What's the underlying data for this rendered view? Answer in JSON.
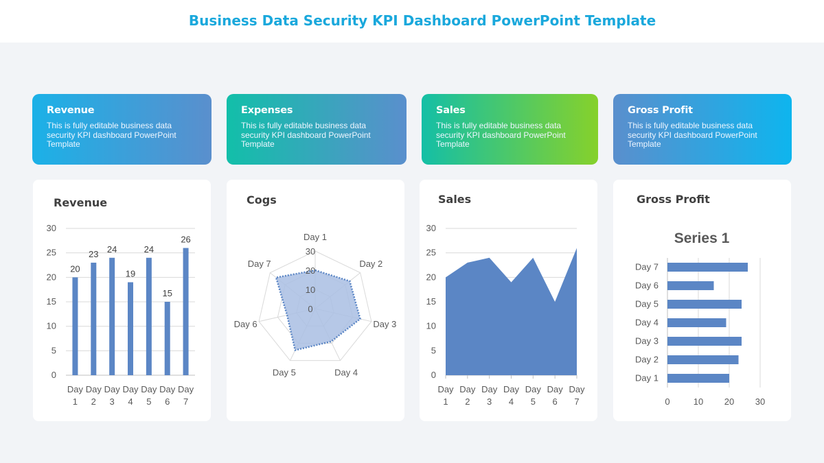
{
  "page": {
    "title": "Business Data Security KPI Dashboard PowerPoint Template"
  },
  "kpis": [
    {
      "title": "Revenue",
      "desc": "This is fully editable business data security KPI dashboard PowerPoint Template",
      "colors": [
        "#1bb1e7",
        "#5a8fcd"
      ]
    },
    {
      "title": "Expenses",
      "desc": "This is fully editable business data security KPI dashboard PowerPoint Template",
      "colors": [
        "#12bfa9",
        "#5a8fcd"
      ]
    },
    {
      "title": "Sales",
      "desc": "This is fully editable business data security KPI dashboard PowerPoint Template",
      "colors": [
        "#14bfa6",
        "#86d12b"
      ]
    },
    {
      "title": "Gross Profit",
      "desc": "This is fully editable business data security KPI dashboard PowerPoint Template",
      "colors": [
        "#5a8fcd",
        "#0eb5ee"
      ]
    }
  ],
  "panels": {
    "revenue": "Revenue",
    "cogs": "Cogs",
    "sales": "Sales",
    "gross_profit": "Gross Profit"
  },
  "colors": {
    "series": "#5b86c5",
    "radar_fill": "#a9bee3",
    "grid": "#d9d9d9",
    "axis_text": "#595959"
  },
  "chart_data": [
    {
      "type": "bar",
      "title": "Revenue",
      "categories": [
        "Day 1",
        "Day 2",
        "Day 3",
        "Day 4",
        "Day 5",
        "Day 6",
        "Day 7"
      ],
      "values": [
        20,
        23,
        24,
        19,
        24,
        15,
        26
      ],
      "ylim": [
        0,
        30
      ],
      "yticks": [
        0,
        5,
        10,
        15,
        20,
        25,
        30
      ],
      "data_labels": true,
      "grid": true
    },
    {
      "type": "radar",
      "title": "Cogs",
      "categories": [
        "Day 1",
        "Day 2",
        "Day 3",
        "Day 4",
        "Day 5",
        "Day 6",
        "Day 7"
      ],
      "values": [
        20,
        23,
        24,
        19,
        24,
        15,
        26
      ],
      "rlim": [
        0,
        30
      ],
      "rticks": [
        0,
        10,
        20,
        30
      ]
    },
    {
      "type": "area",
      "title": "Sales",
      "categories": [
        "Day 1",
        "Day 2",
        "Day 3",
        "Day 4",
        "Day 5",
        "Day 6",
        "Day 7"
      ],
      "values": [
        20,
        23,
        24,
        19,
        24,
        15,
        26
      ],
      "ylim": [
        0,
        30
      ],
      "yticks": [
        0,
        5,
        10,
        15,
        20,
        25,
        30
      ],
      "grid": true
    },
    {
      "type": "bar",
      "orientation": "horizontal",
      "title": "Gross Profit",
      "chart_title": "Series 1",
      "categories": [
        "Day 1",
        "Day 2",
        "Day 3",
        "Day 4",
        "Day 5",
        "Day 6",
        "Day 7"
      ],
      "values": [
        20,
        23,
        24,
        19,
        24,
        15,
        26
      ],
      "xlim": [
        0,
        30
      ],
      "xticks": [
        0,
        10,
        20,
        30
      ],
      "grid": true
    }
  ]
}
